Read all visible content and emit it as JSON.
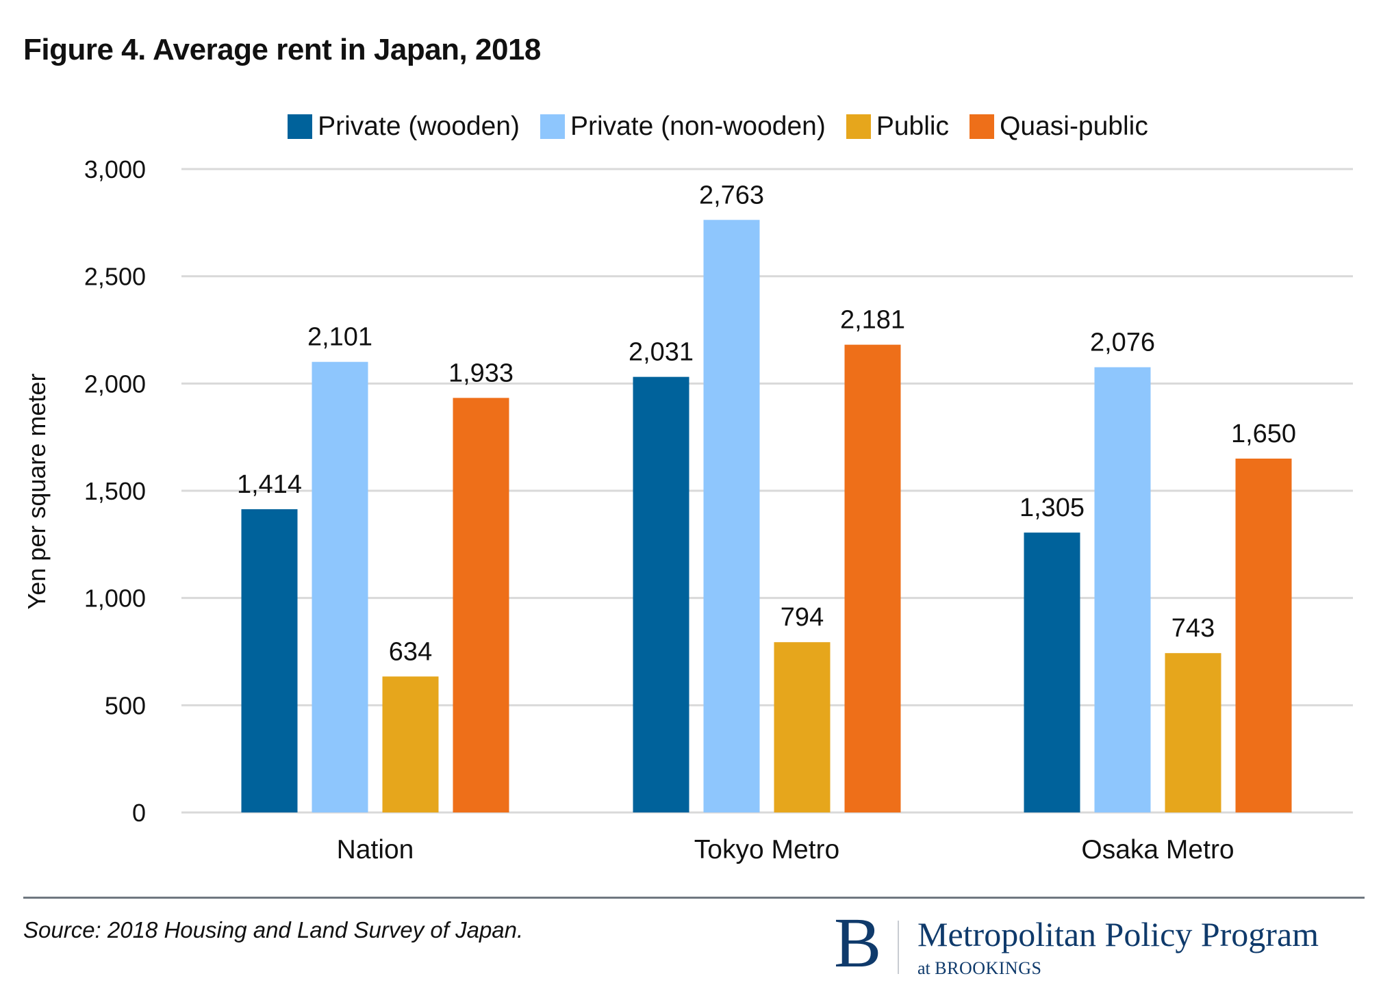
{
  "chart_data": {
    "type": "bar",
    "title": "Figure 4. Average rent in Japan, 2018",
    "xlabel": "",
    "ylabel": "Yen per square meter",
    "ylim": [
      0,
      3000
    ],
    "yticks": [
      0,
      500,
      1000,
      1500,
      2000,
      2500,
      3000
    ],
    "ytick_labels": [
      "0",
      "500",
      "1,000",
      "1,500",
      "2,000",
      "2,500",
      "3,000"
    ],
    "grid": true,
    "legend_placement": "top",
    "categories": [
      "Nation",
      "Tokyo Metro",
      "Osaka Metro"
    ],
    "series": [
      {
        "name": "Private (wooden)",
        "color": "#00629b",
        "values": [
          1414,
          2031,
          1305
        ],
        "labels": [
          "1,414",
          "2,031",
          "1,305"
        ]
      },
      {
        "name": "Private (non-wooden)",
        "color": "#8ec6fd",
        "values": [
          2101,
          2763,
          2076
        ],
        "labels": [
          "2,101",
          "2,763",
          "2,076"
        ]
      },
      {
        "name": "Public",
        "color": "#e6a61c",
        "values": [
          634,
          794,
          743
        ],
        "labels": [
          "634",
          "794",
          "743"
        ]
      },
      {
        "name": "Quasi-public",
        "color": "#ee6f19",
        "values": [
          1933,
          2181,
          1650
        ],
        "labels": [
          "1,933",
          "2,181",
          "1,650"
        ]
      }
    ]
  },
  "footer": {
    "source": "Source: 2018 Housing and Land Survey of Japan.",
    "logo_letter": "B",
    "logo_main": "Metropolitan Policy Program",
    "logo_sub_prefix": "at",
    "logo_sub": "BROOKINGS"
  }
}
